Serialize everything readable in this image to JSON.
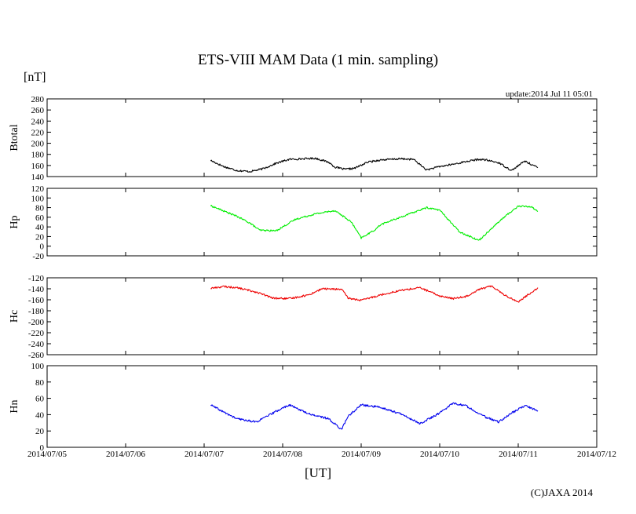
{
  "header": {
    "title": "ETS-VIII MAM Data (1 min. sampling)",
    "unit": "[nT]",
    "update": "update:2014 Jul 11 05:01",
    "xlabel": "[UT]",
    "copyright": "(C)JAXA 2014"
  },
  "chart_data": [
    {
      "type": "line",
      "title": "",
      "ylabel": "Btotal",
      "ylim": [
        140,
        280
      ],
      "yticks": [
        140,
        160,
        180,
        200,
        220,
        240,
        260,
        280
      ],
      "xlim": [
        "2014/07/05",
        "2014/07/12"
      ],
      "xticks": [
        "2014/07/05",
        "2014/07/06",
        "2014/07/07",
        "2014/07/08",
        "2014/07/09",
        "2014/07/10",
        "2014/07/11",
        "2014/07/12"
      ],
      "grid": false,
      "color": "#000000",
      "series": [
        {
          "x": [
            "2014/07/07 02:00",
            "2014/07/07 06:00",
            "2014/07/07 10:00",
            "2014/07/07 14:00",
            "2014/07/07 18:00",
            "2014/07/07 22:00",
            "2014/07/08 02:00",
            "2014/07/08 10:00",
            "2014/07/08 14:00",
            "2014/07/08 16:00",
            "2014/07/08 19:00",
            "2014/07/08 22:00",
            "2014/07/09 02:00",
            "2014/07/09 06:00",
            "2014/07/09 12:00",
            "2014/07/09 16:00",
            "2014/07/09 20:00",
            "2014/07/10 00:00",
            "2014/07/10 04:00",
            "2014/07/10 08:00",
            "2014/07/10 12:00",
            "2014/07/10 14:00",
            "2014/07/10 18:00",
            "2014/07/10 22:00",
            "2014/07/11 02:00",
            "2014/07/11 06:00"
          ],
          "y": [
            169,
            158,
            151,
            149,
            154,
            164,
            171,
            173,
            166,
            157,
            153,
            155,
            166,
            170,
            172,
            171,
            152,
            158,
            162,
            167,
            171,
            170,
            165,
            151,
            168,
            156
          ]
        }
      ]
    },
    {
      "type": "line",
      "title": "",
      "ylabel": "Hp",
      "ylim": [
        -20,
        120
      ],
      "yticks": [
        -20,
        0,
        20,
        40,
        60,
        80,
        100,
        120
      ],
      "xlim": [
        "2014/07/05",
        "2014/07/12"
      ],
      "xticks": [
        "2014/07/05",
        "2014/07/06",
        "2014/07/07",
        "2014/07/08",
        "2014/07/09",
        "2014/07/10",
        "2014/07/11",
        "2014/07/12"
      ],
      "grid": false,
      "color": "#00ee00",
      "series": [
        {
          "x": [
            "2014/07/07 02:00",
            "2014/07/07 06:00",
            "2014/07/07 10:00",
            "2014/07/07 14:00",
            "2014/07/07 17:00",
            "2014/07/07 22:00",
            "2014/07/08 04:00",
            "2014/07/08 10:00",
            "2014/07/08 16:00",
            "2014/07/08 21:00",
            "2014/07/09 00:00",
            "2014/07/09 04:00",
            "2014/07/09 06:00",
            "2014/07/09 12:00",
            "2014/07/09 16:00",
            "2014/07/09 20:00",
            "2014/07/10 00:00",
            "2014/07/10 06:00",
            "2014/07/10 12:00",
            "2014/07/10 16:00",
            "2014/07/10 20:00",
            "2014/07/11 00:00",
            "2014/07/11 04:00",
            "2014/07/11 06:00"
          ],
          "y": [
            84,
            73,
            62,
            48,
            33,
            32,
            56,
            67,
            74,
            50,
            17,
            33,
            45,
            60,
            70,
            80,
            75,
            30,
            12,
            38,
            62,
            83,
            82,
            72
          ]
        }
      ]
    },
    {
      "type": "line",
      "title": "",
      "ylabel": "Hc",
      "ylim": [
        -260,
        -120
      ],
      "yticks": [
        -260,
        -240,
        -220,
        -200,
        -180,
        -160,
        -140,
        -120
      ],
      "xlim": [
        "2014/07/05",
        "2014/07/12"
      ],
      "xticks": [
        "2014/07/05",
        "2014/07/06",
        "2014/07/07",
        "2014/07/08",
        "2014/07/09",
        "2014/07/10",
        "2014/07/11",
        "2014/07/12"
      ],
      "grid": false,
      "color": "#ee0000",
      "series": [
        {
          "x": [
            "2014/07/07 02:00",
            "2014/07/07 06:00",
            "2014/07/07 10:00",
            "2014/07/07 16:00",
            "2014/07/07 21:00",
            "2014/07/08 02:00",
            "2014/07/08 08:00",
            "2014/07/08 12:00",
            "2014/07/08 18:00",
            "2014/07/08 20:00",
            "2014/07/09 00:00",
            "2014/07/09 06:00",
            "2014/07/09 12:00",
            "2014/07/09 18:00",
            "2014/07/10 00:00",
            "2014/07/10 04:00",
            "2014/07/10 08:00",
            "2014/07/10 12:00",
            "2014/07/10 16:00",
            "2014/07/10 20:00",
            "2014/07/11 00:00",
            "2014/07/11 06:00"
          ],
          "y": [
            -139,
            -136,
            -138,
            -146,
            -157,
            -158,
            -151,
            -140,
            -141,
            -157,
            -161,
            -151,
            -143,
            -138,
            -153,
            -158,
            -154,
            -141,
            -135,
            -152,
            -164,
            -138
          ]
        }
      ]
    },
    {
      "type": "line",
      "title": "",
      "ylabel": "Hn",
      "ylim": [
        0,
        100
      ],
      "yticks": [
        0,
        20,
        40,
        60,
        80,
        100
      ],
      "xlim": [
        "2014/07/05",
        "2014/07/12"
      ],
      "xticks": [
        "2014/07/05",
        "2014/07/06",
        "2014/07/07",
        "2014/07/08",
        "2014/07/09",
        "2014/07/10",
        "2014/07/11",
        "2014/07/12"
      ],
      "grid": false,
      "color": "#0000ee",
      "series": [
        {
          "x": [
            "2014/07/07 02:00",
            "2014/07/07 06:00",
            "2014/07/07 10:00",
            "2014/07/07 16:00",
            "2014/07/07 22:00",
            "2014/07/08 02:00",
            "2014/07/08 08:00",
            "2014/07/08 14:00",
            "2014/07/08 18:00",
            "2014/07/08 20:00",
            "2014/07/09 00:00",
            "2014/07/09 06:00",
            "2014/07/09 12:00",
            "2014/07/09 18:00",
            "2014/07/10 00:00",
            "2014/07/10 04:00",
            "2014/07/10 08:00",
            "2014/07/10 14:00",
            "2014/07/10 18:00",
            "2014/07/10 22:00",
            "2014/07/11 02:00",
            "2014/07/11 06:00"
          ],
          "y": [
            52,
            43,
            35,
            31,
            44,
            52,
            41,
            35,
            22,
            38,
            52,
            49,
            41,
            29,
            42,
            54,
            51,
            37,
            31,
            42,
            51,
            45
          ]
        }
      ]
    }
  ]
}
